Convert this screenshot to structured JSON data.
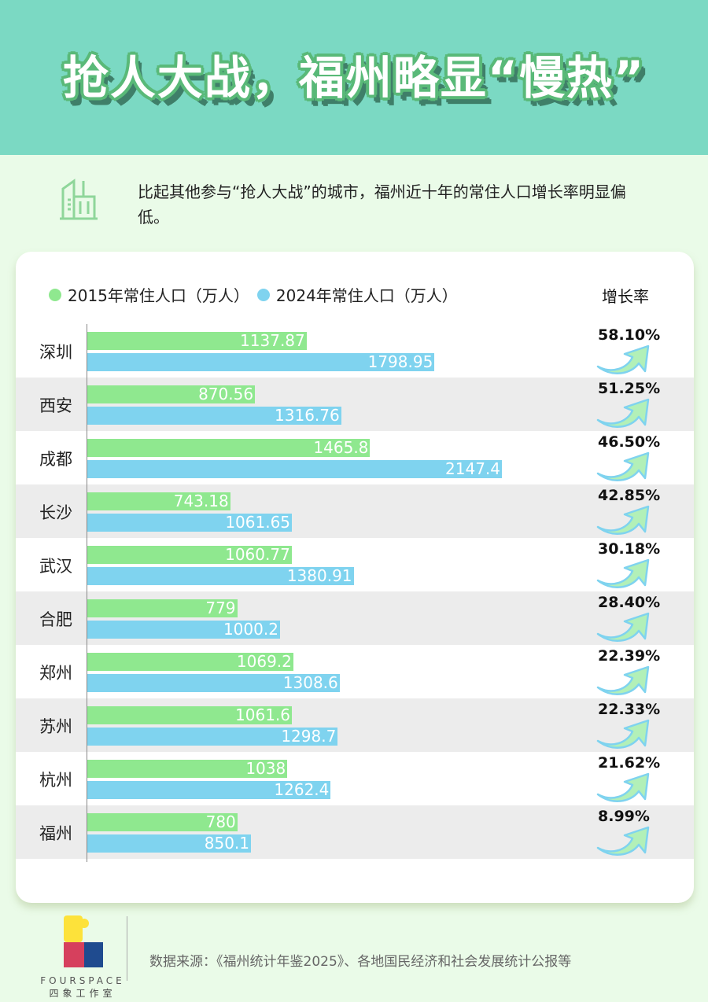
{
  "title": "抢人大战，福州略显“慢热”",
  "intro": "比起其他参与“抢人大战”的城市，福州近十年的常住人口增长率明显偏低。",
  "colors": {
    "y2015": "#8fe88f",
    "y2024": "#7fd3ef",
    "header": "#7bd9c3"
  },
  "chart_data": {
    "type": "bar",
    "legend": [
      "2015年常住人口（万人）",
      "2024年常住人口（万人）"
    ],
    "rate_header": "增长率",
    "categories": [
      "深圳",
      "西安",
      "成都",
      "长沙",
      "武汉",
      "合肥",
      "郑州",
      "苏州",
      "杭州",
      "福州"
    ],
    "series": [
      {
        "name": "2015年常住人口（万人）",
        "values": [
          "1137.87",
          "870.56",
          "1465.8",
          "743.18",
          "1060.77",
          "779",
          "1069.2",
          "1061.6",
          "1038",
          "780"
        ]
      },
      {
        "name": "2024年常住人口（万人）",
        "values": [
          "1798.95",
          "1316.76",
          "2147.4",
          "1061.65",
          "1380.91",
          "1000.2",
          "1308.6",
          "1298.7",
          "1262.4",
          "850.1"
        ]
      }
    ],
    "growth_rates": [
      "58.10%",
      "51.25%",
      "46.50%",
      "42.85%",
      "30.18%",
      "28.40%",
      "22.39%",
      "22.33%",
      "21.62%",
      "8.99%"
    ],
    "xlim": [
      0,
      2147.4
    ]
  },
  "footer": {
    "logo_en": "FOURSPACE",
    "logo_cn": "四象工作室",
    "source": "数据来源：《福州统计年鉴2025》、各地国民经济和社会发展统计公报等"
  }
}
